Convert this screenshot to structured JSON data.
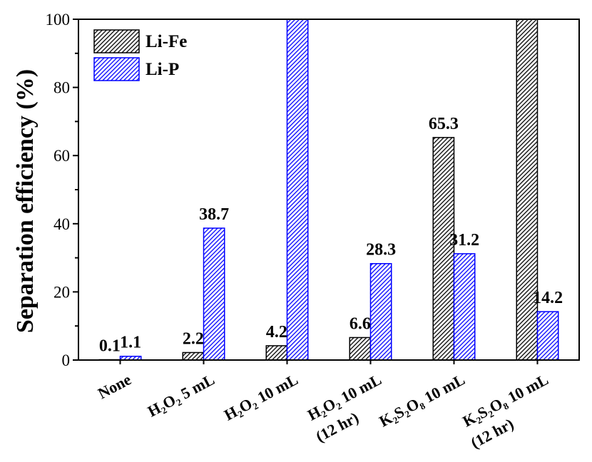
{
  "chart_data": {
    "type": "bar",
    "ylabel": "Separation efficiency (%)",
    "ylim": [
      0,
      100
    ],
    "yticks": [
      0,
      20,
      40,
      60,
      80,
      100
    ],
    "yminor": [
      10,
      30,
      50,
      70,
      90
    ],
    "categories": [
      [
        "None"
      ],
      [
        "H₂O₂ 5 mL"
      ],
      [
        "H₂O₂ 10 mL"
      ],
      [
        "H₂O₂ 10 mL",
        "(12 hr)"
      ],
      [
        "K₂S₂O₈ 10 mL"
      ],
      [
        "K₂S₂O₈ 10 mL",
        "(12 hr)"
      ]
    ],
    "series": [
      {
        "name": "Li-Fe",
        "values": [
          0.1,
          2.2,
          4.2,
          6.6,
          65.3,
          100
        ],
        "labels": [
          "0.1",
          "2.2",
          "4.2",
          "6.6",
          "65.3",
          null
        ],
        "color": "#000000"
      },
      {
        "name": "Li-P",
        "values": [
          1.1,
          38.7,
          100,
          28.3,
          31.2,
          14.2
        ],
        "labels": [
          "1.1",
          "38.7",
          null,
          "28.3",
          "31.2",
          "14.2"
        ],
        "color": "#0000ff"
      }
    ],
    "legend": "top-left",
    "grid": false
  }
}
